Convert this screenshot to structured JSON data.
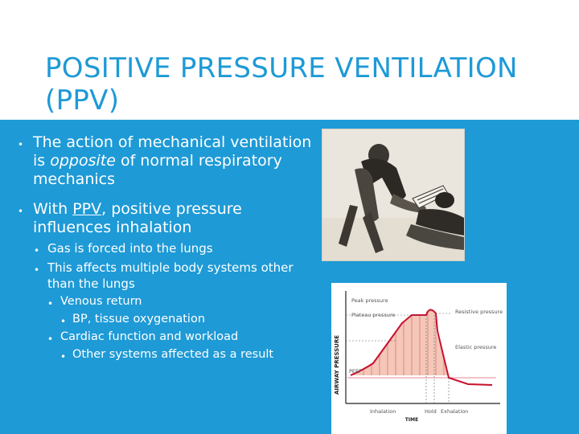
{
  "slide": {
    "title": "POSITIVE PRESSURE VENTILATION (PPV)",
    "bullets": {
      "b1": {
        "text": "The action of mechanical ventilation is ",
        "emph": "opposite",
        "tail": " of normal respiratory mechanics"
      },
      "b2": {
        "pre": "With ",
        "link": "PPV",
        "tail": ", positive pressure influences inhalation"
      },
      "b2a": "Gas is forced into the lungs",
      "b2b": "This affects multiple body systems other than the lungs",
      "b3a": "Venous return",
      "b4a": "BP, tissue oxygenation",
      "b3b": "Cardiac function and workload",
      "b4b": "Other systems affected as a result"
    },
    "bullet_glyph": "•"
  },
  "figure": {
    "ylabel": "AIRWAY PRESSURE",
    "xlabel": "TIME",
    "peak_pressure": "Peak pressure",
    "plateau_pressure": "Plateau pressure",
    "resistive_pressure": "Resistive pressure",
    "elastic_pressure": "Elastic pressure",
    "peep": "PEEP",
    "inhalation": "Inhalation",
    "hold": "Hold",
    "exhalation": "Exhalation"
  },
  "colors": {
    "background": "#1e9ad6",
    "title": "#1e9ad6",
    "text": "#ffffff",
    "curve": "#c8102e",
    "curve_fill": "#f4c7b8"
  }
}
